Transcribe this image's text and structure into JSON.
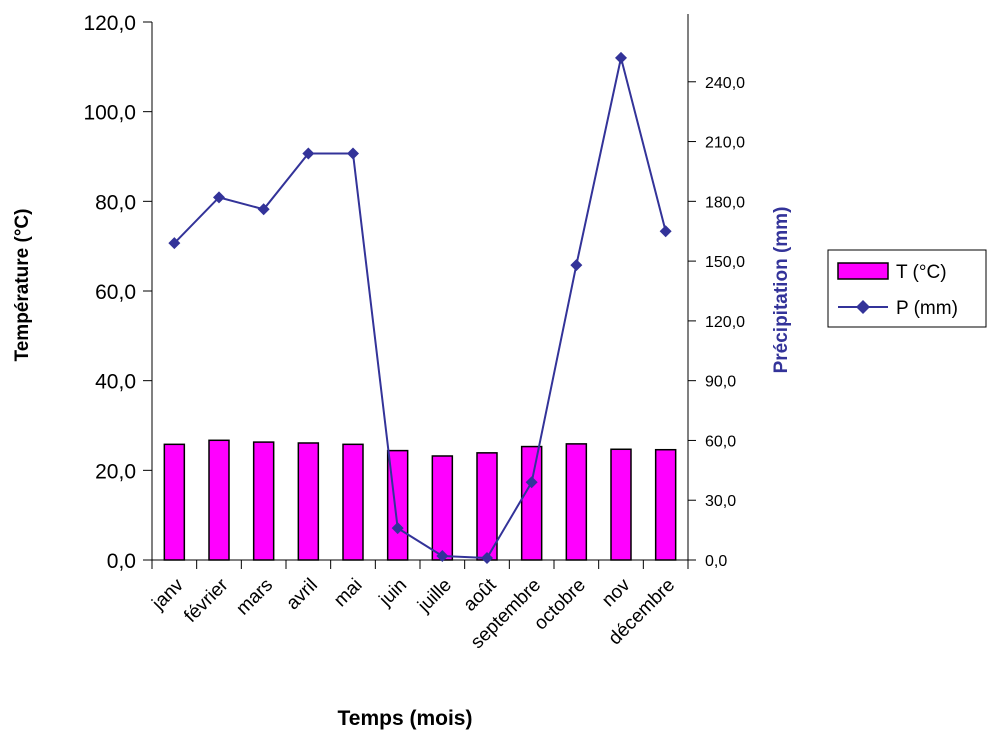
{
  "chart_data": {
    "type": "bar+line",
    "categories": [
      "janvier",
      "février",
      "mars",
      "avril",
      "mai",
      "juin",
      "juillet",
      "août",
      "septembre",
      "octobre",
      "novembre",
      "décembre"
    ],
    "category_labels_shown": [
      "janv",
      "février",
      "mars",
      "avril",
      "mai",
      "juin",
      "juille",
      "août",
      "septembre",
      "octobre",
      "nov",
      "décembre"
    ],
    "series": [
      {
        "name": "T (°C)",
        "kind": "bar",
        "axis": "left",
        "color": "#ff00ff",
        "values": [
          25.8,
          26.7,
          26.3,
          26.1,
          25.8,
          24.4,
          23.2,
          23.9,
          25.3,
          25.9,
          24.7,
          24.6
        ]
      },
      {
        "name": "P (mm)",
        "kind": "line",
        "axis": "right",
        "color": "#333399",
        "values": [
          159,
          182,
          176,
          204,
          204,
          16,
          2,
          1,
          39,
          148,
          252,
          165
        ]
      }
    ],
    "xlabel": "Temps (mois)",
    "ylabel_left": "Température (°C)",
    "ylabel_right": "Précipitation (mm)",
    "ylim_left": [
      0,
      120
    ],
    "ylim_right": [
      0,
      270
    ],
    "left_ticks": [
      "0,0",
      "20,0",
      "40,0",
      "60,0",
      "80,0",
      "100,0",
      "120,0"
    ],
    "right_ticks": [
      "0,0",
      "30,0",
      "60,0",
      "90,0",
      "120,0",
      "150,0",
      "180,0",
      "210,0",
      "240,0"
    ],
    "legend_position": "right",
    "grid": false
  }
}
